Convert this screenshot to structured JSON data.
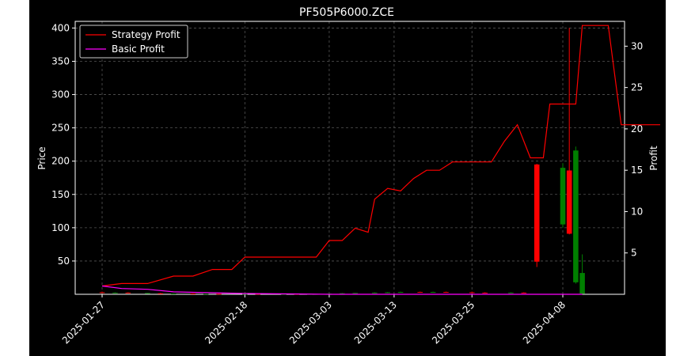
{
  "chart_data": {
    "type": "candlestick",
    "title": "PF505P6000.ZCE",
    "xlabel": "",
    "ylabel_left": "Price",
    "ylabel_right": "Profit",
    "y_left_range": [
      0,
      410
    ],
    "y_right_range": [
      0,
      33
    ],
    "y_left_ticks": [
      50,
      100,
      150,
      200,
      250,
      300,
      350,
      400
    ],
    "y_right_ticks": [
      5,
      10,
      15,
      20,
      25,
      30
    ],
    "x_ticks": [
      "2025-01-27",
      "2025-02-18",
      "2025-03-03",
      "2025-03-13",
      "2025-03-25",
      "2025-04-08"
    ],
    "grid": true,
    "legend_position": "top-left",
    "background": "#000000",
    "colors": {
      "up": "#008000",
      "down": "#ff0000",
      "strategy": "#ff0000",
      "basic": "#ff00ff",
      "text": "#ffffff",
      "grid": "#555555"
    },
    "legend": [
      "Strategy Profit",
      "Basic Profit"
    ],
    "candles": [
      {
        "date": "2025-01-27",
        "open": 3,
        "high": 4,
        "low": 2,
        "close": 2.5
      },
      {
        "date": "2025-01-29",
        "open": 2,
        "high": 3,
        "low": 1.5,
        "close": 2.5
      },
      {
        "date": "2025-01-31",
        "open": 2.5,
        "high": 3,
        "low": 1.5,
        "close": 2
      },
      {
        "date": "2025-02-03",
        "open": 1.5,
        "high": 2,
        "low": 1,
        "close": 2
      },
      {
        "date": "2025-02-05",
        "open": 1.5,
        "high": 2,
        "low": 1,
        "close": 1
      },
      {
        "date": "2025-02-07",
        "open": 1,
        "high": 1.5,
        "low": 0.5,
        "close": 1.2
      },
      {
        "date": "2025-02-10",
        "open": 1.2,
        "high": 1.5,
        "low": 0.5,
        "close": 0.8
      },
      {
        "date": "2025-02-12",
        "open": 0.8,
        "high": 1,
        "low": 0.5,
        "close": 0.9
      },
      {
        "date": "2025-02-14",
        "open": 0.9,
        "high": 1,
        "low": 0.5,
        "close": 0.7
      },
      {
        "date": "2025-02-18",
        "open": 0.7,
        "high": 1,
        "low": 0.5,
        "close": 0.8
      },
      {
        "date": "2025-02-20",
        "open": 0.8,
        "high": 1,
        "low": 0.5,
        "close": 0.6
      },
      {
        "date": "2025-02-24",
        "open": 0.6,
        "high": 1,
        "low": 0.5,
        "close": 0.7
      },
      {
        "date": "2025-02-26",
        "open": 0.7,
        "high": 1,
        "low": 0.5,
        "close": 0.6
      },
      {
        "date": "2025-02-28",
        "open": 0.6,
        "high": 1,
        "low": 0.5,
        "close": 0.8
      },
      {
        "date": "2025-03-03",
        "open": 0.8,
        "high": 1.5,
        "low": 0.5,
        "close": 1
      },
      {
        "date": "2025-03-05",
        "open": 1,
        "high": 2,
        "low": 0.5,
        "close": 1.5
      },
      {
        "date": "2025-03-07",
        "open": 1.5,
        "high": 2,
        "low": 1,
        "close": 2
      },
      {
        "date": "2025-03-10",
        "open": 2,
        "high": 3,
        "low": 1.5,
        "close": 2.5
      },
      {
        "date": "2025-03-12",
        "open": 2.5,
        "high": 3.5,
        "low": 2,
        "close": 3
      },
      {
        "date": "2025-03-14",
        "open": 3,
        "high": 4,
        "low": 2.5,
        "close": 3.5
      },
      {
        "date": "2025-03-17",
        "open": 3.5,
        "high": 4,
        "low": 2.5,
        "close": 3
      },
      {
        "date": "2025-03-19",
        "open": 3,
        "high": 4,
        "low": 2.5,
        "close": 3.5
      },
      {
        "date": "2025-03-21",
        "open": 3.5,
        "high": 4,
        "low": 2.5,
        "close": 3
      },
      {
        "date": "2025-03-25",
        "open": 3,
        "high": 4,
        "low": 2,
        "close": 2.5
      },
      {
        "date": "2025-03-27",
        "open": 2.5,
        "high": 3,
        "low": 1.5,
        "close": 2
      },
      {
        "date": "2025-03-31",
        "open": 2,
        "high": 3,
        "low": 1.5,
        "close": 2.5
      },
      {
        "date": "2025-04-02",
        "open": 2.5,
        "high": 3,
        "low": 1.5,
        "close": 2
      },
      {
        "date": "2025-04-04",
        "open": 195,
        "high": 196,
        "low": 41,
        "close": 49
      },
      {
        "date": "2025-04-08",
        "open": 105,
        "high": 197,
        "low": 100,
        "close": 190
      },
      {
        "date": "2025-04-09",
        "open": 186,
        "high": 400,
        "low": 90,
        "close": 91
      },
      {
        "date": "2025-04-10",
        "open": 18,
        "high": 222,
        "low": 16,
        "close": 216
      },
      {
        "date": "2025-04-11",
        "open": 1,
        "high": 60,
        "low": 1,
        "close": 32
      }
    ],
    "series": [
      {
        "name": "Strategy Profit",
        "axis": "right",
        "points": [
          [
            "2025-01-27",
            1.0
          ],
          [
            "2025-01-30",
            1.3
          ],
          [
            "2025-02-03",
            1.3
          ],
          [
            "2025-02-07",
            2.2
          ],
          [
            "2025-02-10",
            2.2
          ],
          [
            "2025-02-13",
            3.0
          ],
          [
            "2025-02-16",
            3.0
          ],
          [
            "2025-02-18",
            4.5
          ],
          [
            "2025-02-21",
            4.5
          ],
          [
            "2025-02-25",
            4.5
          ],
          [
            "2025-03-01",
            4.5
          ],
          [
            "2025-03-03",
            6.5
          ],
          [
            "2025-03-05",
            6.5
          ],
          [
            "2025-03-07",
            8.0
          ],
          [
            "2025-03-09",
            7.5
          ],
          [
            "2025-03-10",
            11.5
          ],
          [
            "2025-03-12",
            12.8
          ],
          [
            "2025-03-14",
            12.5
          ],
          [
            "2025-03-16",
            14.0
          ],
          [
            "2025-03-18",
            15.0
          ],
          [
            "2025-03-20",
            15.0
          ],
          [
            "2025-03-22",
            16.0
          ],
          [
            "2025-03-25",
            16.0
          ],
          [
            "2025-03-28",
            16.0
          ],
          [
            "2025-03-30",
            18.5
          ],
          [
            "2025-04-01",
            20.5
          ],
          [
            "2025-04-03",
            16.5
          ],
          [
            "2025-04-05",
            16.5
          ],
          [
            "2025-04-06",
            23.0
          ],
          [
            "2025-04-08",
            23.0
          ],
          [
            "2025-04-10",
            23.0
          ],
          [
            "2025-04-11",
            32.5
          ],
          [
            "2025-04-13",
            32.5
          ],
          [
            "2025-04-15",
            32.5
          ],
          [
            "2025-04-17",
            20.5
          ],
          [
            "2025-04-19",
            20.5
          ],
          [
            "2025-04-21",
            20.5
          ],
          [
            "2025-04-23",
            20.5
          ]
        ]
      },
      {
        "name": "Basic Profit",
        "axis": "right",
        "points": [
          [
            "2025-01-27",
            1.0
          ],
          [
            "2025-01-30",
            0.7
          ],
          [
            "2025-02-03",
            0.6
          ],
          [
            "2025-02-07",
            0.3
          ],
          [
            "2025-02-12",
            0.2
          ],
          [
            "2025-02-18",
            0.1
          ],
          [
            "2025-02-25",
            0.05
          ],
          [
            "2025-03-03",
            0.0
          ],
          [
            "2025-03-13",
            0.0
          ],
          [
            "2025-03-25",
            0.0
          ],
          [
            "2025-04-08",
            0.0
          ],
          [
            "2025-04-11",
            0.0
          ]
        ]
      }
    ]
  }
}
